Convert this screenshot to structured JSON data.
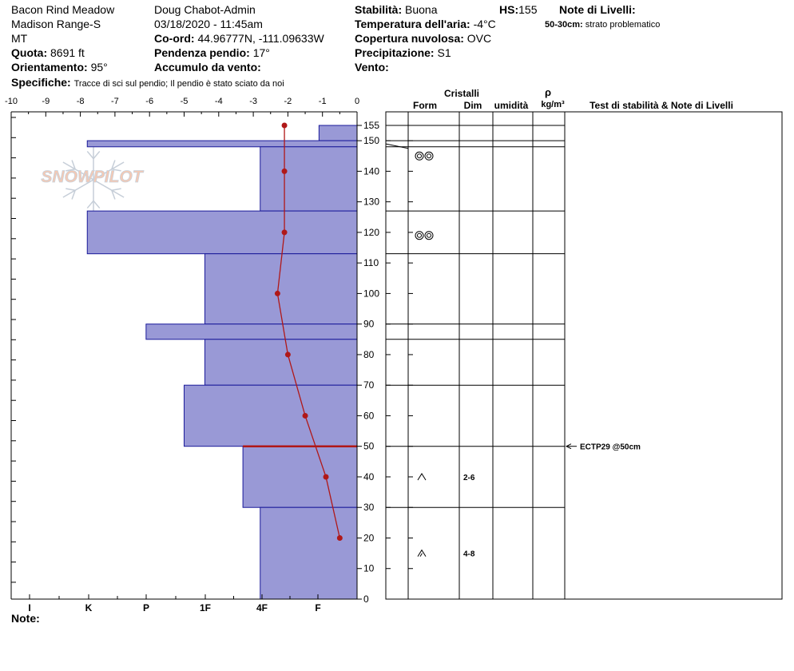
{
  "header": {
    "location": "Bacon Rind Meadow",
    "range": "Madison Range-S",
    "state": "MT",
    "quota_label": "Quota:",
    "quota_value": "8691 ft",
    "orient_label": "Orientamento:",
    "orient_value": "95°",
    "observer": "Doug Chabot-Admin",
    "datetime": "03/18/2020 - 11:45am",
    "coord_label": "Co-ord:",
    "coord_value": "44.96777N, -111.09633W",
    "slope_label": "Pendenza pendio:",
    "slope_value": "17°",
    "wind_load_label": "Accumulo da vento:",
    "stability_label": "Stabilità:",
    "stability_value": "Buona",
    "hs_label": "HS:",
    "hs_value": "155",
    "air_temp_label": "Temperatura dell'aria:",
    "air_temp_value": "-4°C",
    "cloud_label": "Copertura nuvolosa:",
    "cloud_value": "OVC",
    "precip_label": "Precipitazione:",
    "precip_value": "S1",
    "wind_label": "Vento:",
    "layer_notes_label": "Note di Livelli:",
    "layer_note_range": "50-30cm:",
    "layer_note_text": "strato problematico",
    "specifics_label": "Specifiche:",
    "specifics_value": "Tracce di sci sul pendio;  Il pendio è stato sciato da noi",
    "note_label": "Note:"
  },
  "columns": {
    "crystals": "Cristalli",
    "form": "Form",
    "dim": "Dim",
    "moisture": "umidità",
    "rho": "ρ",
    "density_unit": "kg/m³",
    "tests": "Test di stabilità & Note di Livelli"
  },
  "watermark": "SNOWPILOT",
  "chart_data": {
    "type": "snow-profile",
    "temperature_axis": {
      "ticks": [
        "-10",
        "-9",
        "-8",
        "-7",
        "-6",
        "-5",
        "-4",
        "-3",
        "-2",
        "-1",
        "0"
      ],
      "range": [
        -10,
        0
      ]
    },
    "hardness_axis": {
      "labels": [
        "I",
        "K",
        "P",
        "1F",
        "4F",
        "F"
      ]
    },
    "depth_axis": {
      "range": [
        0,
        155
      ],
      "ticks": [
        "155",
        "150",
        "140",
        "130",
        "120",
        "110",
        "100",
        "90",
        "80",
        "70",
        "60",
        "50",
        "40",
        "30",
        "20",
        "10",
        "0"
      ]
    },
    "hardness_layers": [
      {
        "top": 155,
        "bottom": 150,
        "value": -1.1
      },
      {
        "top": 150,
        "bottom": 148,
        "value": -7.8
      },
      {
        "top": 148,
        "bottom": 127,
        "value": -2.8
      },
      {
        "top": 127,
        "bottom": 113,
        "value": -7.8
      },
      {
        "top": 113,
        "bottom": 90,
        "value": -4.4
      },
      {
        "top": 90,
        "bottom": 85,
        "value": -6.1
      },
      {
        "top": 85,
        "bottom": 70,
        "value": -4.4
      },
      {
        "top": 70,
        "bottom": 50,
        "value": -5.0
      },
      {
        "top": 50,
        "bottom": 30,
        "value": -3.3
      },
      {
        "top": 30,
        "bottom": 0,
        "value": -2.8
      }
    ],
    "temperature_profile": [
      {
        "depth": 155,
        "temp": -2.1
      },
      {
        "depth": 140,
        "temp": -2.1
      },
      {
        "depth": 120,
        "temp": -2.1
      },
      {
        "depth": 100,
        "temp": -2.3
      },
      {
        "depth": 80,
        "temp": -2.0
      },
      {
        "depth": 60,
        "temp": -1.5
      },
      {
        "depth": 40,
        "temp": -0.9
      },
      {
        "depth": 20,
        "temp": -0.5
      }
    ],
    "problem_layer_depth": 50,
    "layer_boundaries": [
      155,
      150,
      148,
      127,
      113,
      90,
      85,
      70,
      50,
      30
    ],
    "crystals": [
      {
        "depth": 145,
        "form": "rounds"
      },
      {
        "depth": 119,
        "form": "rounds"
      },
      {
        "depth": 40,
        "form": "facets",
        "size": "2-6"
      },
      {
        "depth": 15,
        "form": "depth-hoar",
        "size": "4-8"
      }
    ],
    "stability_tests": [
      {
        "depth": 50,
        "label": "ECTP29 @50cm"
      }
    ]
  }
}
